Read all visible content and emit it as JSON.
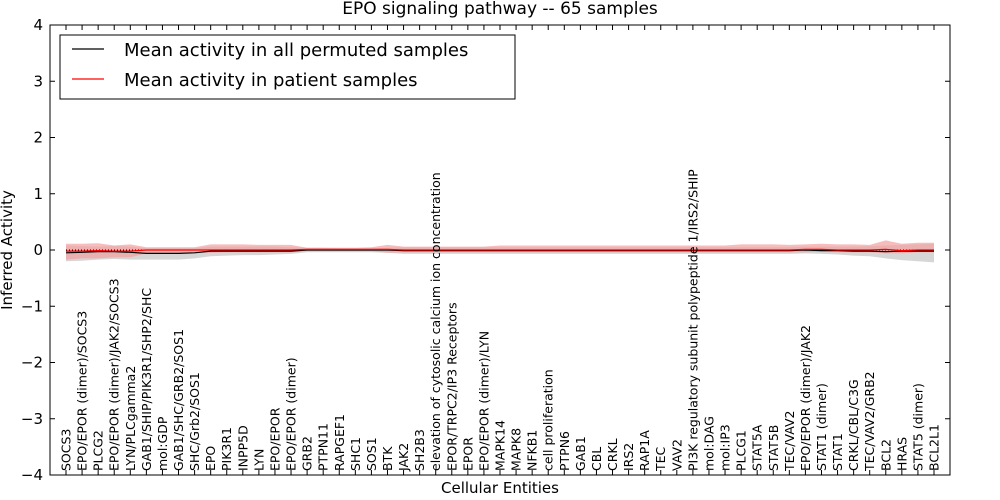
{
  "chart_data": {
    "type": "line",
    "title": "EPO signaling pathway -- 65 samples",
    "xlabel": "Cellular Entities",
    "ylabel": "Inferred Activity",
    "ylim": [
      -4,
      4
    ],
    "yticks": [
      "−4",
      "−3",
      "−2",
      "−1",
      "0",
      "1",
      "2",
      "3",
      "4"
    ],
    "grid": false,
    "legend_position": "top-left",
    "categories": [
      "SOCS3",
      "EPO/EPOR (dimer)/SOCS3",
      "PLCG2",
      "EPO/EPOR (dimer)/JAK2/SOCS3",
      "LYN/PLCgamma2",
      "GAB1/SHIP/PIK3R1/SHP2/SHC",
      "mol:GDP",
      "GAB1/SHC/GRB2/SOS1",
      "SHC/Grb2/SOS1",
      "EPO",
      "PIK3R1",
      "INPP5D",
      "LYN",
      "EPO/EPOR",
      "EPO/EPOR (dimer)",
      "GRB2",
      "PTPN11",
      "RAPGEF1",
      "SHC1",
      "SOS1",
      "BTK",
      "JAK2",
      "SH2B3",
      "elevation of cytosolic calcium ion concentration",
      "EPOR/TRPC2/IP3 Receptors",
      "EPOR",
      "EPO/EPOR (dimer)/LYN",
      "MAPK14",
      "MAPK8",
      "NFKB1",
      "cell proliferation",
      "PTPN6",
      "GAB1",
      "CBL",
      "CRKL",
      "IRS2",
      "RAP1A",
      "TEC",
      "VAV2",
      "PI3K regulatory subunit polypeptide 1/IRS2/SHIP",
      "mol:DAG",
      "mol:IP3",
      "PLCG1",
      "STAT5A",
      "STAT5B",
      "TEC/VAV2",
      "EPO/EPOR (dimer)/JAK2",
      "STAT1 (dimer)",
      "STAT1",
      "CRKL/CBL/C3G",
      "TEC/VAV2/GRB2",
      "BCL2",
      "HRAS",
      "STAT5 (dimer)",
      "BCL2L1"
    ],
    "series": [
      {
        "name": "Mean activity in all permuted samples",
        "color": "#000000",
        "band_color": "#c8c8c8",
        "values": [
          -0.05,
          -0.04,
          -0.03,
          -0.03,
          -0.04,
          -0.06,
          -0.06,
          -0.06,
          -0.05,
          -0.02,
          -0.02,
          -0.02,
          -0.02,
          -0.02,
          -0.02,
          0.0,
          0.0,
          0.0,
          0.0,
          0.0,
          0.0,
          -0.01,
          -0.01,
          -0.01,
          -0.01,
          -0.01,
          -0.01,
          -0.01,
          -0.01,
          -0.01,
          -0.01,
          -0.01,
          -0.01,
          -0.01,
          -0.01,
          -0.01,
          -0.01,
          -0.01,
          -0.01,
          -0.01,
          -0.01,
          -0.01,
          -0.01,
          -0.01,
          -0.01,
          -0.01,
          0.0,
          -0.01,
          -0.01,
          -0.02,
          -0.02,
          -0.03,
          -0.02,
          -0.02,
          -0.02
        ],
        "lower": [
          -0.2,
          -0.19,
          -0.17,
          -0.16,
          -0.17,
          -0.17,
          -0.17,
          -0.17,
          -0.15,
          -0.11,
          -0.1,
          -0.09,
          -0.09,
          -0.08,
          -0.07,
          -0.04,
          -0.04,
          -0.04,
          -0.04,
          -0.04,
          -0.05,
          -0.07,
          -0.07,
          -0.07,
          -0.07,
          -0.07,
          -0.07,
          -0.07,
          -0.07,
          -0.07,
          -0.07,
          -0.07,
          -0.07,
          -0.07,
          -0.07,
          -0.07,
          -0.07,
          -0.07,
          -0.07,
          -0.07,
          -0.07,
          -0.07,
          -0.07,
          -0.07,
          -0.07,
          -0.07,
          -0.06,
          -0.07,
          -0.08,
          -0.1,
          -0.11,
          -0.15,
          -0.18,
          -0.2,
          -0.22
        ],
        "upper": [
          0.08,
          0.07,
          0.06,
          0.07,
          0.06,
          0.03,
          0.03,
          0.03,
          0.03,
          0.06,
          0.06,
          0.06,
          0.06,
          0.06,
          0.05,
          0.04,
          0.04,
          0.03,
          0.03,
          0.03,
          0.04,
          0.05,
          0.05,
          0.05,
          0.05,
          0.05,
          0.05,
          0.05,
          0.05,
          0.05,
          0.05,
          0.05,
          0.05,
          0.05,
          0.05,
          0.05,
          0.05,
          0.05,
          0.05,
          0.05,
          0.05,
          0.05,
          0.05,
          0.05,
          0.05,
          0.05,
          0.06,
          0.06,
          0.06,
          0.06,
          0.07,
          0.08,
          0.09,
          0.1,
          0.11
        ]
      },
      {
        "name": "Mean activity in patient samples",
        "color": "#ff0000",
        "band_color": "#f4a0a0",
        "values": [
          -0.02,
          -0.02,
          -0.01,
          -0.02,
          -0.02,
          0.0,
          0.0,
          0.0,
          0.0,
          0.0,
          0.0,
          0.0,
          0.0,
          0.0,
          0.0,
          0.01,
          0.01,
          0.01,
          0.01,
          0.01,
          0.01,
          0.0,
          0.0,
          0.0,
          0.0,
          0.0,
          0.0,
          0.0,
          0.0,
          0.0,
          0.0,
          0.0,
          0.0,
          0.0,
          0.0,
          0.0,
          0.0,
          0.0,
          0.0,
          0.0,
          0.0,
          0.0,
          0.0,
          0.0,
          0.0,
          0.0,
          0.01,
          0.01,
          0.0,
          0.0,
          0.0,
          0.01,
          -0.01,
          0.0,
          0.0
        ],
        "lower": [
          -0.17,
          -0.15,
          -0.15,
          -0.13,
          -0.13,
          -0.06,
          -0.05,
          -0.05,
          -0.05,
          -0.05,
          -0.04,
          -0.04,
          -0.04,
          -0.04,
          -0.04,
          -0.02,
          -0.02,
          -0.02,
          -0.02,
          -0.02,
          -0.05,
          -0.04,
          -0.04,
          -0.04,
          -0.04,
          -0.04,
          -0.04,
          -0.04,
          -0.04,
          -0.04,
          -0.04,
          -0.04,
          -0.04,
          -0.04,
          -0.04,
          -0.04,
          -0.04,
          -0.04,
          -0.04,
          -0.04,
          -0.04,
          -0.04,
          -0.04,
          -0.04,
          -0.04,
          -0.04,
          -0.04,
          -0.03,
          -0.04,
          -0.04,
          -0.04,
          -0.06,
          -0.06,
          -0.04,
          -0.04
        ],
        "upper": [
          0.11,
          0.11,
          0.12,
          0.08,
          0.1,
          0.05,
          0.05,
          0.05,
          0.05,
          0.1,
          0.1,
          0.1,
          0.09,
          0.09,
          0.09,
          0.04,
          0.04,
          0.04,
          0.04,
          0.05,
          0.09,
          0.06,
          0.06,
          0.06,
          0.06,
          0.06,
          0.06,
          0.08,
          0.08,
          0.08,
          0.08,
          0.08,
          0.08,
          0.08,
          0.08,
          0.08,
          0.08,
          0.08,
          0.08,
          0.08,
          0.08,
          0.08,
          0.1,
          0.1,
          0.1,
          0.09,
          0.1,
          0.11,
          0.1,
          0.1,
          0.09,
          0.17,
          0.11,
          0.13,
          0.13
        ]
      }
    ]
  }
}
